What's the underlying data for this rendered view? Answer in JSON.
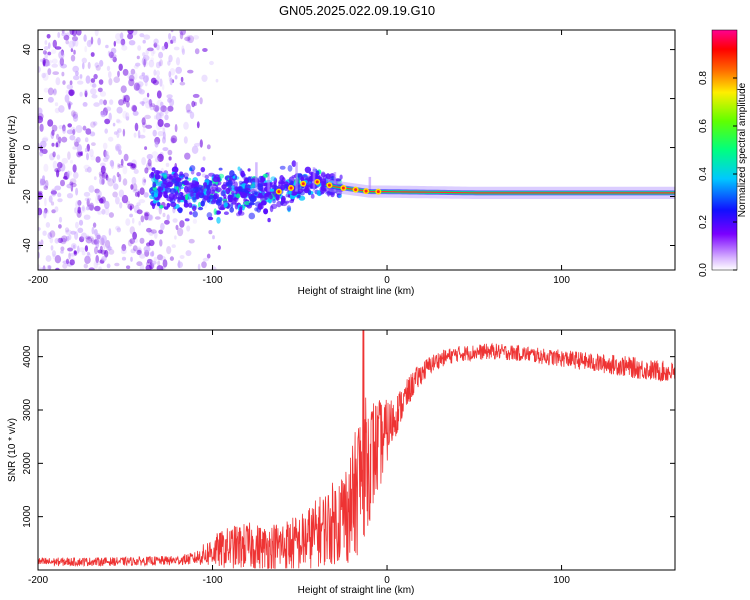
{
  "title": "GN05.2025.022.09.19.G10",
  "colors": {
    "snr_line": "#ee3333",
    "spectrogram_scatter": "#8a3cf0",
    "ridge_line": "#00e07a"
  },
  "chart_data": [
    {
      "type": "heatmap",
      "xlabel": "Height of straight line (km)",
      "ylabel": "Frequency (Hz)",
      "xlim": [
        -200,
        165
      ],
      "ylim": [
        -50,
        48
      ],
      "x_ticks": [
        "-200",
        "-100",
        "0",
        "100"
      ],
      "y_ticks": [
        "-40",
        "-20",
        "0",
        "20",
        "40"
      ],
      "colorbar": {
        "label": "Normalized spectral amplitude",
        "range": [
          0.0,
          1.0
        ],
        "ticks": [
          "0.0",
          "0.2",
          "0.4",
          "0.6",
          "0.8"
        ],
        "colormap": "rainbow (white-violet-blue-cyan-green-yellow-red-magenta)"
      },
      "ridge": {
        "description_points": [
          {
            "x": -130,
            "y": -17
          },
          {
            "x": -100,
            "y": -18
          },
          {
            "x": -75,
            "y": -18
          },
          {
            "x": -60,
            "y": -18
          },
          {
            "x": -50,
            "y": -15
          },
          {
            "x": -40,
            "y": -14
          },
          {
            "x": -30,
            "y": -16
          },
          {
            "x": -20,
            "y": -17
          },
          {
            "x": -10,
            "y": -18
          },
          {
            "x": 0,
            "y": -18
          },
          {
            "x": 50,
            "y": -18.5
          },
          {
            "x": 100,
            "y": -18.5
          },
          {
            "x": 165,
            "y": -18.5
          }
        ]
      },
      "noisy_region": {
        "x": [
          -200,
          -105
        ],
        "y": [
          -50,
          48
        ]
      }
    },
    {
      "type": "line",
      "xlabel": "Height of straight line (km)",
      "ylabel": "SNR (10 * v/v)",
      "xlim": [
        -200,
        165
      ],
      "ylim": [
        0,
        4500
      ],
      "x_ticks": [
        "-200",
        "-100",
        "0",
        "100"
      ],
      "y_ticks": [
        "1000",
        "2000",
        "3000",
        "4000"
      ],
      "series": [
        {
          "envelope_x": [
            -200,
            -150,
            -120,
            -110,
            -100,
            -90,
            -80,
            -70,
            -60,
            -50,
            -40,
            -30,
            -20,
            -15,
            -10,
            -5,
            0,
            5,
            10,
            15,
            20,
            25,
            30,
            40,
            50,
            60,
            70,
            80,
            90,
            100,
            110,
            120,
            130,
            140,
            150,
            165
          ],
          "envelope_mean": [
            150,
            160,
            180,
            220,
            350,
            420,
            450,
            420,
            450,
            500,
            700,
            900,
            1200,
            1800,
            2100,
            2300,
            2600,
            2900,
            3200,
            3500,
            3700,
            3850,
            3950,
            4050,
            4080,
            4100,
            4080,
            4050,
            4000,
            3970,
            3930,
            3880,
            3850,
            3800,
            3750,
            3700
          ],
          "envelope_spread": [
            80,
            80,
            90,
            120,
            300,
            400,
            450,
            420,
            500,
            550,
            650,
            800,
            1100,
            1400,
            1200,
            900,
            600,
            400,
            300,
            250,
            200,
            180,
            160,
            150,
            150,
            150,
            150,
            150,
            150,
            160,
            170,
            180,
            190,
            200,
            200,
            200
          ]
        }
      ]
    }
  ]
}
